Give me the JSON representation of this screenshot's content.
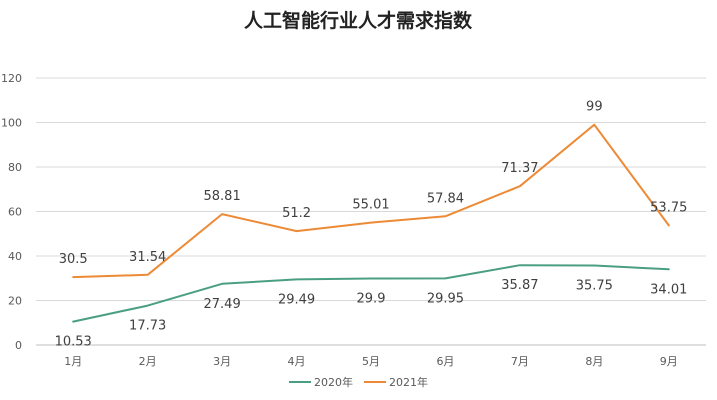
{
  "chart_data": {
    "type": "line",
    "title": "人工智能行业人才需求指数",
    "categories": [
      "1月",
      "2月",
      "3月",
      "4月",
      "5月",
      "6月",
      "7月",
      "8月",
      "9月"
    ],
    "ylim": [
      0,
      120
    ],
    "yticks": [
      0,
      20,
      40,
      60,
      80,
      100,
      120
    ],
    "grid": true,
    "legend_position": "bottom",
    "series": [
      {
        "name": "2020年",
        "color": "#4a9f80",
        "values": [
          10.53,
          17.73,
          27.49,
          29.49,
          29.9,
          29.95,
          35.87,
          35.75,
          34.01
        ],
        "labels": [
          "10.53",
          "17.73",
          "27.49",
          "29.49",
          "29.9",
          "29.95",
          "35.87",
          "35.75",
          "34.01"
        ],
        "label_position": "below"
      },
      {
        "name": "2021年",
        "color": "#ed8a35",
        "values": [
          30.5,
          31.54,
          58.81,
          51.2,
          55.01,
          57.84,
          71.37,
          99,
          53.75
        ],
        "labels": [
          "30.5",
          "31.54",
          "58.81",
          "51.2",
          "55.01",
          "57.84",
          "71.37",
          "99",
          "53.75"
        ],
        "label_position": "above"
      }
    ]
  }
}
